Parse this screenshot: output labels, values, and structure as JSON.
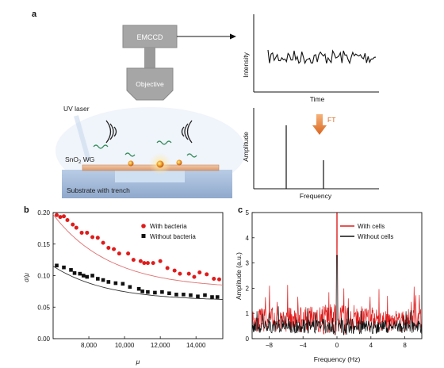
{
  "panels": {
    "a": {
      "letter": "a",
      "emccd_label": "EMCCD",
      "objective_label": "Objective",
      "uv_label": "UV laser",
      "wg_label": "SnO",
      "wg_sub": "2",
      "wg_suffix": " WG",
      "substrate_label": "Substrate with trench",
      "ft_label": "FT",
      "intensity_plot": {
        "ylabel": "Intensity",
        "xlabel": "Time"
      },
      "amplitude_plot": {
        "ylabel": "Amplitude",
        "xlabel": "Frequency",
        "peaks_relative_height": [
          1.0,
          0.45
        ]
      },
      "colors": {
        "accent_arrow": "#e07a28",
        "particle": "#f0a23a",
        "bacteria": "#2e8b57",
        "substrate": "#9db8d8",
        "box": "#a8a8a8"
      }
    },
    "b": {
      "letter": "b"
    },
    "c": {
      "letter": "c"
    }
  },
  "chart_data": [
    {
      "type": "scatter",
      "panel": "b",
      "title": "",
      "xlabel": "μ",
      "ylabel": "σ/μ",
      "xlim": [
        6000,
        15500
      ],
      "ylim": [
        0,
        0.2
      ],
      "xticks": [
        8000,
        10000,
        12000,
        14000
      ],
      "xtick_labels": [
        "8,000",
        "10,000",
        "12,000",
        "14,000"
      ],
      "yticks": [
        0,
        0.05,
        0.1,
        0.15,
        0.2
      ],
      "ytick_labels": [
        "0.00",
        "0.05",
        "0.10",
        "0.15",
        "0.20"
      ],
      "legend_position": "top-right",
      "series": [
        {
          "name": "With bacteria",
          "color": "#e01b1b",
          "marker": "circle",
          "x": [
            6200,
            6400,
            6600,
            6800,
            7100,
            7300,
            7600,
            7900,
            8200,
            8500,
            8800,
            9100,
            9400,
            9700,
            10200,
            10500,
            10900,
            11100,
            11300,
            11600,
            12000,
            12400,
            12800,
            13100,
            13600,
            13900,
            14200,
            14600,
            15000,
            15300
          ],
          "y": [
            0.196,
            0.193,
            0.194,
            0.188,
            0.181,
            0.176,
            0.168,
            0.168,
            0.161,
            0.16,
            0.152,
            0.144,
            0.142,
            0.135,
            0.135,
            0.125,
            0.123,
            0.12,
            0.12,
            0.12,
            0.123,
            0.112,
            0.108,
            0.103,
            0.103,
            0.098,
            0.105,
            0.102,
            0.095,
            0.094
          ]
        },
        {
          "name": "Without bacteria",
          "color": "#111111",
          "marker": "square",
          "x": [
            6200,
            6600,
            7000,
            7200,
            7500,
            7700,
            7900,
            8200,
            8500,
            8800,
            9100,
            9500,
            9900,
            10300,
            10800,
            11000,
            11300,
            11700,
            12100,
            12500,
            12900,
            13300,
            13700,
            14100,
            14500,
            14900,
            15200
          ],
          "y": [
            0.116,
            0.113,
            0.109,
            0.104,
            0.103,
            0.1,
            0.098,
            0.1,
            0.095,
            0.093,
            0.09,
            0.088,
            0.087,
            0.082,
            0.079,
            0.075,
            0.074,
            0.073,
            0.074,
            0.072,
            0.07,
            0.07,
            0.069,
            0.067,
            0.069,
            0.066,
            0.066
          ]
        }
      ],
      "fits": [
        {
          "series": "With bacteria",
          "color": "#e07070",
          "a": 0.079,
          "b": 0.118,
          "tau": 3200
        },
        {
          "series": "Without bacteria",
          "color": "#333333",
          "a": 0.06,
          "b": 0.055,
          "tau": 3000
        }
      ]
    },
    {
      "type": "line",
      "panel": "c",
      "title": "",
      "xlabel": "Frequency (Hz)",
      "ylabel": "Amplitude (a.u.)",
      "xlim": [
        -10,
        10
      ],
      "ylim": [
        0,
        5
      ],
      "xticks": [
        -8,
        -4,
        0,
        4,
        8
      ],
      "yticks": [
        0,
        1,
        2,
        3,
        4,
        5
      ],
      "legend_position": "top-right",
      "series": [
        {
          "name": "With cells",
          "color": "#e01b1b",
          "baseline": 0.7,
          "noise": 0.9,
          "peak": 5.0
        },
        {
          "name": "Without cells",
          "color": "#111111",
          "baseline": 0.45,
          "noise": 0.5,
          "peak": 3.3
        }
      ]
    }
  ]
}
